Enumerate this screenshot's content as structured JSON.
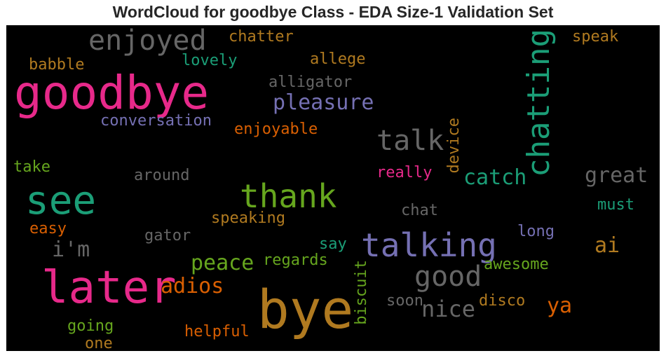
{
  "chart_data": {
    "type": "wordcloud",
    "title": "WordCloud for goodbye Class - EDA Size-1 Validation Set",
    "colors": {
      "pink": "#e7298a",
      "gold": "#b07a20",
      "teal": "#1b9e77",
      "purple": "#7570b3",
      "gray": "#666666",
      "green": "#66a61e",
      "orange": "#d95f02"
    },
    "words": [
      {
        "text": "bye",
        "color": "gold",
        "weight": 1.0
      },
      {
        "text": "goodbye",
        "color": "pink",
        "weight": 0.95
      },
      {
        "text": "later",
        "color": "pink",
        "weight": 0.9
      },
      {
        "text": "see",
        "color": "teal",
        "weight": 0.88
      },
      {
        "text": "talking",
        "color": "purple",
        "weight": 0.72
      },
      {
        "text": "thank",
        "color": "green",
        "weight": 0.7
      },
      {
        "text": "chatting",
        "color": "teal",
        "weight": 0.66
      },
      {
        "text": "enjoyed",
        "color": "gray",
        "weight": 0.6
      },
      {
        "text": "talk",
        "color": "gray",
        "weight": 0.6
      },
      {
        "text": "good",
        "color": "gray",
        "weight": 0.6
      },
      {
        "text": "nice",
        "color": "gray",
        "weight": 0.5
      },
      {
        "text": "adios",
        "color": "orange",
        "weight": 0.45
      },
      {
        "text": "great",
        "color": "gray",
        "weight": 0.45
      },
      {
        "text": "pleasure",
        "color": "purple",
        "weight": 0.42
      },
      {
        "text": "catch",
        "color": "teal",
        "weight": 0.42
      },
      {
        "text": "peace",
        "color": "green",
        "weight": 0.42
      },
      {
        "text": "i'm",
        "color": "gray",
        "weight": 0.42
      },
      {
        "text": "ai",
        "color": "gold",
        "weight": 0.4
      },
      {
        "text": "ya",
        "color": "orange",
        "weight": 0.4
      },
      {
        "text": "speaking",
        "color": "gold",
        "weight": 0.3
      },
      {
        "text": "conversation",
        "color": "purple",
        "weight": 0.3
      },
      {
        "text": "enjoyable",
        "color": "orange",
        "weight": 0.3
      },
      {
        "text": "alligator",
        "color": "gray",
        "weight": 0.3
      },
      {
        "text": "allege",
        "color": "gold",
        "weight": 0.3
      },
      {
        "text": "chatter",
        "color": "gold",
        "weight": 0.3
      },
      {
        "text": "lovely",
        "color": "teal",
        "weight": 0.3
      },
      {
        "text": "babble",
        "color": "gold",
        "weight": 0.3
      },
      {
        "text": "speak",
        "color": "gold",
        "weight": 0.3
      },
      {
        "text": "take",
        "color": "green",
        "weight": 0.28
      },
      {
        "text": "around",
        "color": "gray",
        "weight": 0.28
      },
      {
        "text": "really",
        "color": "pink",
        "weight": 0.28
      },
      {
        "text": "device",
        "color": "gold",
        "weight": 0.28
      },
      {
        "text": "must",
        "color": "teal",
        "weight": 0.28
      },
      {
        "text": "chat",
        "color": "gray",
        "weight": 0.28
      },
      {
        "text": "easy",
        "color": "orange",
        "weight": 0.28
      },
      {
        "text": "gator",
        "color": "gray",
        "weight": 0.28
      },
      {
        "text": "long",
        "color": "purple",
        "weight": 0.28
      },
      {
        "text": "say",
        "color": "teal",
        "weight": 0.28
      },
      {
        "text": "regards",
        "color": "green",
        "weight": 0.28
      },
      {
        "text": "awesome",
        "color": "green",
        "weight": 0.28
      },
      {
        "text": "biscuit",
        "color": "green",
        "weight": 0.28
      },
      {
        "text": "soon",
        "color": "gray",
        "weight": 0.28
      },
      {
        "text": "disco",
        "color": "gold",
        "weight": 0.28
      },
      {
        "text": "going",
        "color": "green",
        "weight": 0.28
      },
      {
        "text": "helpful",
        "color": "orange",
        "weight": 0.28
      },
      {
        "text": "one",
        "color": "gold",
        "weight": 0.28
      }
    ]
  }
}
